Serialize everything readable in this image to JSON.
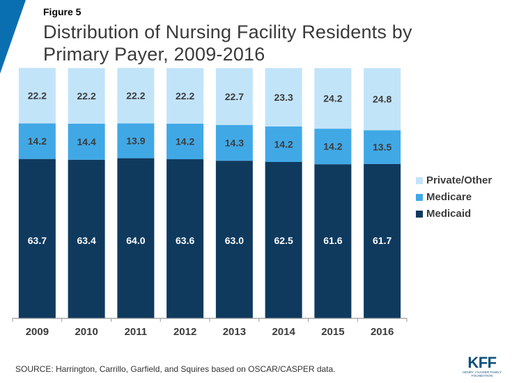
{
  "figure_label": "Figure 5",
  "title": "Distribution of Nursing Facility Residents by Primary Payer, 2009-2016",
  "source": "SOURCE: Harrington, Carrillo, Garfield, and Squires based on OSCAR/CASPER data.",
  "logo": {
    "main": "KFF",
    "sub": "HENRY J KAISER FAMILY FOUNDATION"
  },
  "colors": {
    "medicaid": "#0f3a5e",
    "medicare": "#41a8e6",
    "private": "#c2e4f9",
    "accent": "#0a6fb0"
  },
  "chart_data": {
    "type": "bar",
    "stacked": true,
    "categories": [
      "2009",
      "2010",
      "2011",
      "2012",
      "2013",
      "2014",
      "2015",
      "2016"
    ],
    "series": [
      {
        "name": "Medicaid",
        "values": [
          63.7,
          63.4,
          64.0,
          63.6,
          63.0,
          62.5,
          61.6,
          61.7
        ]
      },
      {
        "name": "Medicare",
        "values": [
          14.2,
          14.4,
          13.9,
          14.2,
          14.3,
          14.2,
          14.2,
          13.5
        ]
      },
      {
        "name": "Private/Other",
        "values": [
          22.2,
          22.2,
          22.2,
          22.2,
          22.7,
          23.3,
          24.2,
          24.8
        ]
      }
    ],
    "data_labels": {
      "Medicaid": [
        "63.7",
        "63.4",
        "64.0",
        "63.6",
        "63.0",
        "62.5",
        "61.6",
        "61.7"
      ],
      "Medicare": [
        "14.2",
        "14.4",
        "13.9",
        "14.2",
        "14.3",
        "14.2",
        "14.2",
        "13.5"
      ],
      "Private/Other": [
        "22.2",
        "22.2",
        "22.2",
        "22.2",
        "22.7",
        "23.3",
        "24.2",
        "24.8"
      ]
    },
    "ylim": [
      0,
      100
    ],
    "legend_order": [
      "Private/Other",
      "Medicare",
      "Medicaid"
    ],
    "legend_position": "right",
    "grid": false
  }
}
